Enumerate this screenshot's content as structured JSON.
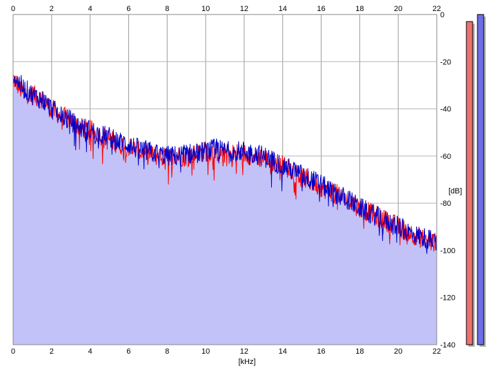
{
  "chart_data": {
    "type": "area",
    "title": "",
    "xlabel": "[kHz]",
    "ylabel": "[dB]",
    "xlim": [
      0,
      22
    ],
    "ylim": [
      -140,
      0
    ],
    "x_ticks": [
      0,
      2,
      4,
      6,
      8,
      10,
      12,
      14,
      16,
      18,
      20,
      22
    ],
    "y_ticks": [
      0,
      -20,
      -40,
      -60,
      -80,
      -100,
      -120,
      -140
    ],
    "grid": true,
    "series": [
      {
        "color": "#ff0000",
        "x": [
          0,
          0.5,
          1,
          1.5,
          2,
          2.5,
          3,
          3.5,
          4,
          4.5,
          5,
          5.5,
          6,
          6.5,
          7,
          7.5,
          8,
          8.5,
          9,
          9.5,
          10,
          10.5,
          11,
          11.5,
          12,
          12.5,
          13,
          13.5,
          14,
          14.5,
          15,
          15.5,
          16,
          16.5,
          17,
          17.5,
          18,
          18.5,
          19,
          19.5,
          20,
          20.5,
          21,
          21.5,
          22
        ],
        "values": [
          -27,
          -33,
          -34,
          -36,
          -40,
          -43,
          -45,
          -48,
          -49,
          -51,
          -53,
          -55,
          -56,
          -58,
          -59,
          -60,
          -61,
          -60,
          -60,
          -59,
          -58,
          -58,
          -59,
          -59,
          -59,
          -60,
          -61,
          -62,
          -64,
          -66,
          -69,
          -71,
          -73,
          -75,
          -77,
          -79,
          -82,
          -84,
          -86,
          -88,
          -90,
          -92,
          -94,
          -96,
          -97
        ]
      },
      {
        "color": "#0000cc",
        "x": [
          0,
          0.5,
          1,
          1.5,
          2,
          2.5,
          3,
          3.5,
          4,
          4.5,
          5,
          5.5,
          6,
          6.5,
          7,
          7.5,
          8,
          8.5,
          9,
          9.5,
          10,
          10.5,
          11,
          11.5,
          12,
          12.5,
          13,
          13.5,
          14,
          14.5,
          15,
          15.5,
          16,
          16.5,
          17,
          17.5,
          18,
          18.5,
          19,
          19.5,
          20,
          20.5,
          21,
          21.5,
          22
        ],
        "values": [
          -26,
          -31,
          -34,
          -36,
          -40,
          -43,
          -45,
          -48,
          -49,
          -51,
          -52,
          -54,
          -55,
          -57,
          -58,
          -59,
          -60,
          -60,
          -59,
          -59,
          -58,
          -57,
          -58,
          -58,
          -58,
          -59,
          -60,
          -62,
          -64,
          -66,
          -68,
          -70,
          -72,
          -75,
          -77,
          -79,
          -82,
          -84,
          -86,
          -88,
          -90,
          -92,
          -94,
          -95,
          -97
        ]
      }
    ],
    "meters": [
      {
        "color": "#f07070",
        "level_db": -3
      },
      {
        "color": "#6e6ee8",
        "level_db": 0
      }
    ]
  }
}
